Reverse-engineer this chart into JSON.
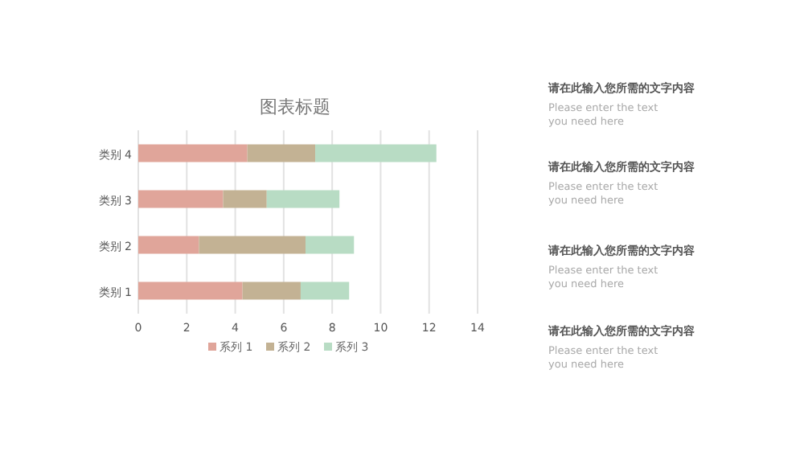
{
  "chart_data": {
    "type": "bar",
    "orientation": "horizontal",
    "stacked": true,
    "title": "图表标题",
    "categories": [
      "类别 4",
      "类别 3",
      "类别 2",
      "类别 1"
    ],
    "series": [
      {
        "name": "系列 1",
        "color": "#e0a59a",
        "values": [
          4.5,
          3.5,
          2.5,
          4.3
        ]
      },
      {
        "name": "系列 2",
        "color": "#c3b294",
        "values": [
          2.8,
          1.8,
          4.4,
          2.4
        ]
      },
      {
        "name": "系列 3",
        "color": "#b8dcc4",
        "values": [
          5,
          3,
          2,
          2
        ]
      }
    ],
    "xlim": [
      0,
      14
    ],
    "xticks": [
      0,
      2,
      4,
      6,
      8,
      10,
      12,
      14
    ],
    "grid": "x",
    "legend": "bottom",
    "annotations": [
      "请在此输入您所需的文字内容",
      "Please enter the text you need here",
      "请在此输入您所需的文字内容",
      "Please enter the text you need here",
      "请在此输入您所需的文字内容",
      "Please enter the text you need here",
      "请在此输入您所需的文字内容",
      "Please enter the text you need here"
    ]
  }
}
